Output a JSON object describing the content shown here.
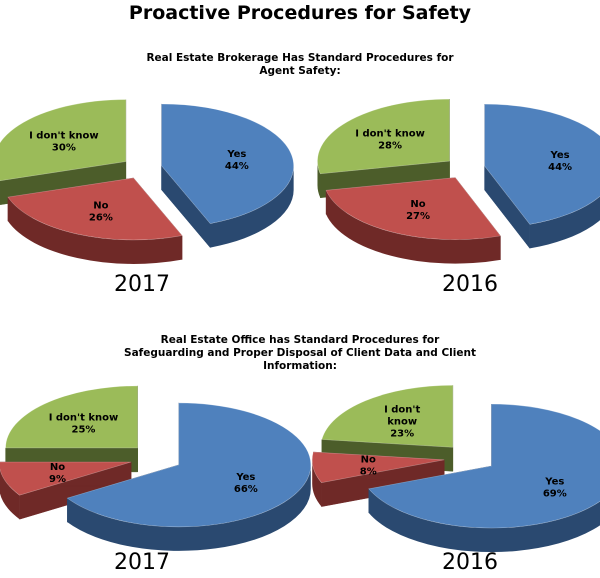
{
  "title": "Proactive Procedures for Safety",
  "colors": {
    "yes": "#4f81bd",
    "yes_dark": "#2a4970",
    "no": "#c0504d",
    "no_dark": "#6f2927",
    "idk": "#9bbb59",
    "idk_dark": "#4c5d2a"
  },
  "chart_data": [
    {
      "type": "pie",
      "title": "Real Estate Brokerage Has Standard Procedures for Agent Safety:",
      "year": "2017",
      "slices": [
        {
          "key": "yes",
          "label": "Yes",
          "value": 44,
          "value_label": "44%"
        },
        {
          "key": "no",
          "label": "No",
          "value": 26,
          "value_label": "26%"
        },
        {
          "key": "idk",
          "label": "I don't know",
          "value": 30,
          "value_label": "30%"
        }
      ]
    },
    {
      "type": "pie",
      "title": "Real Estate Brokerage Has Standard Procedures for Agent Safety:",
      "year": "2016",
      "slices": [
        {
          "key": "yes",
          "label": "Yes",
          "value": 44,
          "value_label": "44%"
        },
        {
          "key": "no",
          "label": "No",
          "value": 27,
          "value_label": "27%"
        },
        {
          "key": "idk",
          "label": "I don't know",
          "value": 28,
          "value_label": "28%"
        }
      ]
    },
    {
      "type": "pie",
      "title": "Real Estate Office has Standard Procedures for Safeguarding and Proper Disposal of Client Data and Client Information:",
      "year": "2017",
      "slices": [
        {
          "key": "yes",
          "label": "Yes",
          "value": 66,
          "value_label": "66%"
        },
        {
          "key": "no",
          "label": "No",
          "value": 9,
          "value_label": "9%"
        },
        {
          "key": "idk",
          "label": "I don't know",
          "value": 25,
          "value_label": "25%"
        }
      ]
    },
    {
      "type": "pie",
      "title": "Real Estate Office has Standard Procedures for Safeguarding and Proper Disposal of Client Data and Client Information:",
      "year": "2016",
      "slices": [
        {
          "key": "yes",
          "label": "Yes",
          "value": 69,
          "value_label": "69%"
        },
        {
          "key": "no",
          "label": "No",
          "value": 8,
          "value_label": "8%"
        },
        {
          "key": "idk",
          "label": "I don't know",
          "value": 23,
          "value_label": "23%"
        }
      ]
    }
  ]
}
